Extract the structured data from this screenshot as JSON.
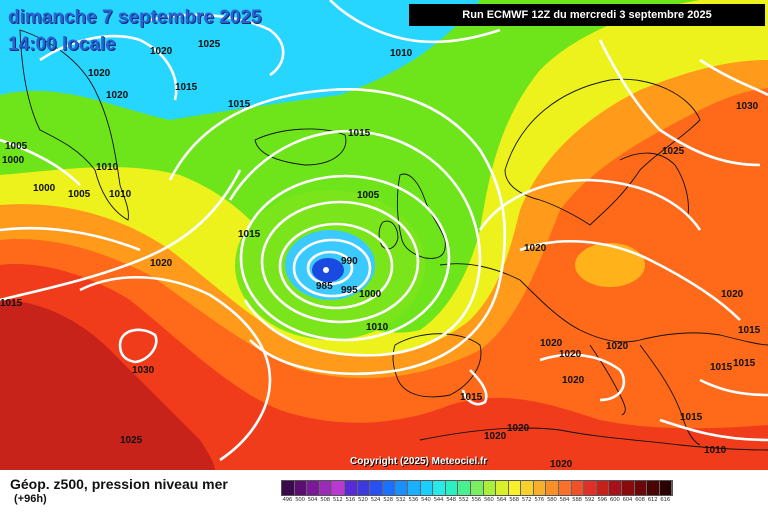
{
  "header": {
    "date": "dimanche 7 septembre 2025",
    "time": "14:00 locale",
    "run": "Run ECMWF 12Z du mercredi 3 septembre 2025"
  },
  "footer": {
    "title": "Géop. z500, pression niveau mer",
    "lead": "(+96h)",
    "copyright": "Copyright (2025) Meteociel.fr"
  },
  "colors": {
    "water_blue": "#2bd8ff",
    "green": "#6ee51a",
    "yellow": "#f0f21a",
    "orange": "#ff8c1a",
    "red": "#f0361a",
    "deep_red": "#b71a1a"
  },
  "colorbar": {
    "labels": [
      "496",
      "500",
      "504",
      "508",
      "512",
      "516",
      "520",
      "524",
      "528",
      "532",
      "536",
      "540",
      "544",
      "548",
      "552",
      "556",
      "560",
      "564",
      "568",
      "572",
      "576",
      "580",
      "584",
      "588",
      "592",
      "596",
      "600",
      "604",
      "608",
      "612",
      "616"
    ],
    "colors": [
      "#3a0a4a",
      "#5a1070",
      "#7a1a98",
      "#9a2ab8",
      "#b83ad0",
      "#5a2ad8",
      "#3a3ae0",
      "#2a50f0",
      "#1a70ff",
      "#1a90ff",
      "#1ab0ff",
      "#1ad0ff",
      "#2ae8e8",
      "#2af0c0",
      "#4af090",
      "#7af060",
      "#aaf03a",
      "#d8f02a",
      "#f8f02a",
      "#f8d02a",
      "#f8b02a",
      "#f8902a",
      "#f8702a",
      "#f0502a",
      "#e0302a",
      "#c8201a",
      "#a8101a",
      "#880a0a",
      "#6a0808",
      "#4a0404",
      "#2a0202"
    ]
  },
  "pressure_labels": [
    {
      "id": "l1",
      "text": "1025"
    },
    {
      "id": "l2",
      "text": "1010"
    },
    {
      "id": "l3",
      "text": "1020"
    },
    {
      "id": "l4",
      "text": "1020"
    },
    {
      "id": "l5",
      "text": "1015"
    },
    {
      "id": "l6",
      "text": "1020"
    },
    {
      "id": "l7",
      "text": "1015"
    },
    {
      "id": "l8",
      "text": "1015"
    },
    {
      "id": "l9",
      "text": "1005"
    },
    {
      "id": "l10",
      "text": "1000"
    },
    {
      "id": "l11",
      "text": "1010"
    },
    {
      "id": "l12",
      "text": "1000"
    },
    {
      "id": "l13",
      "text": "1005"
    },
    {
      "id": "l14",
      "text": "1010"
    },
    {
      "id": "l15",
      "text": "1005"
    },
    {
      "id": "l16",
      "text": "1015"
    },
    {
      "id": "l17",
      "text": "990"
    },
    {
      "id": "l18",
      "text": "985"
    },
    {
      "id": "l19",
      "text": "995"
    },
    {
      "id": "l20",
      "text": "1000"
    },
    {
      "id": "l21",
      "text": "1010"
    },
    {
      "id": "l22",
      "text": "1020"
    },
    {
      "id": "l23",
      "text": "1015"
    },
    {
      "id": "l24",
      "text": "1030"
    },
    {
      "id": "l25",
      "text": "1025"
    },
    {
      "id": "l26",
      "text": "1030"
    },
    {
      "id": "l27",
      "text": "1025"
    },
    {
      "id": "l28",
      "text": "1020"
    },
    {
      "id": "l29",
      "text": "1020"
    },
    {
      "id": "l30",
      "text": "1020"
    },
    {
      "id": "l31",
      "text": "1020"
    },
    {
      "id": "l32",
      "text": "1020"
    },
    {
      "id": "l33",
      "text": "1015"
    },
    {
      "id": "l34",
      "text": "1015"
    },
    {
      "id": "l35",
      "text": "1015"
    },
    {
      "id": "l36",
      "text": "1020"
    },
    {
      "id": "l37",
      "text": "1015"
    },
    {
      "id": "l38",
      "text": "1020"
    },
    {
      "id": "l39",
      "text": "1020"
    },
    {
      "id": "l40",
      "text": "1010"
    },
    {
      "id": "l41",
      "text": "1020"
    },
    {
      "id": "l42",
      "text": "1015"
    }
  ]
}
